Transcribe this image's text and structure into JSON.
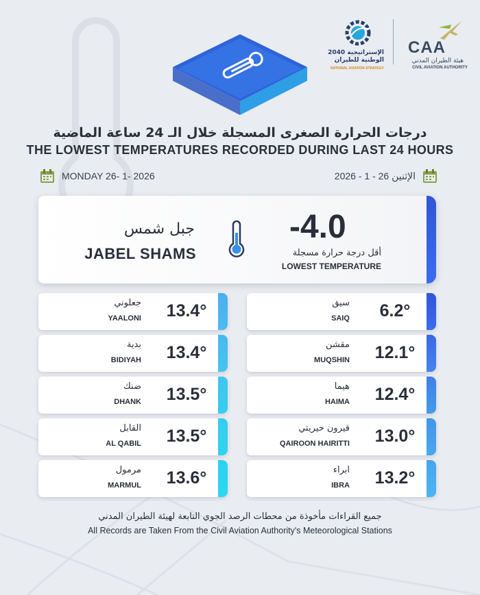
{
  "logos": {
    "caa_word": "CAA",
    "caa_ar": "هيئة الطيران المدني",
    "caa_en": "CIVIL AVIATION AUTHORITY",
    "strategy_ar_line1": "الإستراتيجية 2040",
    "strategy_ar_line2": "الوطنية للطيران",
    "strategy_en": "NATIONAL AVIATION STRATEGY"
  },
  "header": {
    "title_ar": "درجات الحرارة الصغرى المسجلة خلال الـ 24 ساعة الماضية",
    "title_en": "THE LOWEST TEMPERATURES RECORDED DURING LAST 24 HOURS"
  },
  "dates": {
    "en": "MONDAY 26- 1- 2026",
    "ar": "الإثنين 26 - 1 - 2026",
    "icon": "calendar-icon"
  },
  "lowest": {
    "value": "-4.0",
    "label_ar": "أقل درجة حرارة مسجلة",
    "label_en": "LOWEST TEMPERATURE",
    "station_ar": "جبل شمس",
    "station_en": "JABEL SHAMS",
    "icon": "thermometer-icon"
  },
  "stations_right": [
    {
      "ar": "سيق",
      "en": "SAIQ",
      "value": "6.2°"
    },
    {
      "ar": "مقشن",
      "en": "MUQSHIN",
      "value": "12.1°"
    },
    {
      "ar": "هيما",
      "en": "HAIMA",
      "value": "12.4°"
    },
    {
      "ar": "قيرون حيريتي",
      "en": "QAIROON HAIRITTI",
      "value": "13.0°"
    },
    {
      "ar": "ابراء",
      "en": "IBRA",
      "value": "13.2°"
    }
  ],
  "stations_left": [
    {
      "ar": "جعلوني",
      "en": "YAALONI",
      "value": "13.4°"
    },
    {
      "ar": "بدية",
      "en": "BIDIYAH",
      "value": "13.4°"
    },
    {
      "ar": "ضنك",
      "en": "DHANK",
      "value": "13.5°"
    },
    {
      "ar": "القابل",
      "en": "AL QABIL",
      "value": "13.5°"
    },
    {
      "ar": "مرمول",
      "en": "MARMUL",
      "value": "13.6°"
    }
  ],
  "footer": {
    "ar": "جميع القراءات مأخوذة من محطات الرصد الجوي التابعة لهيئة الطيران المدني",
    "en": "All Records are Taken From the Civil Aviation Authority's Meteorological Stations"
  },
  "colors": {
    "background": "#e9ecf1",
    "accent_blue": "#2f56d6",
    "accent_cyan": "#2ec8f0",
    "text": "#2a2e3a"
  }
}
